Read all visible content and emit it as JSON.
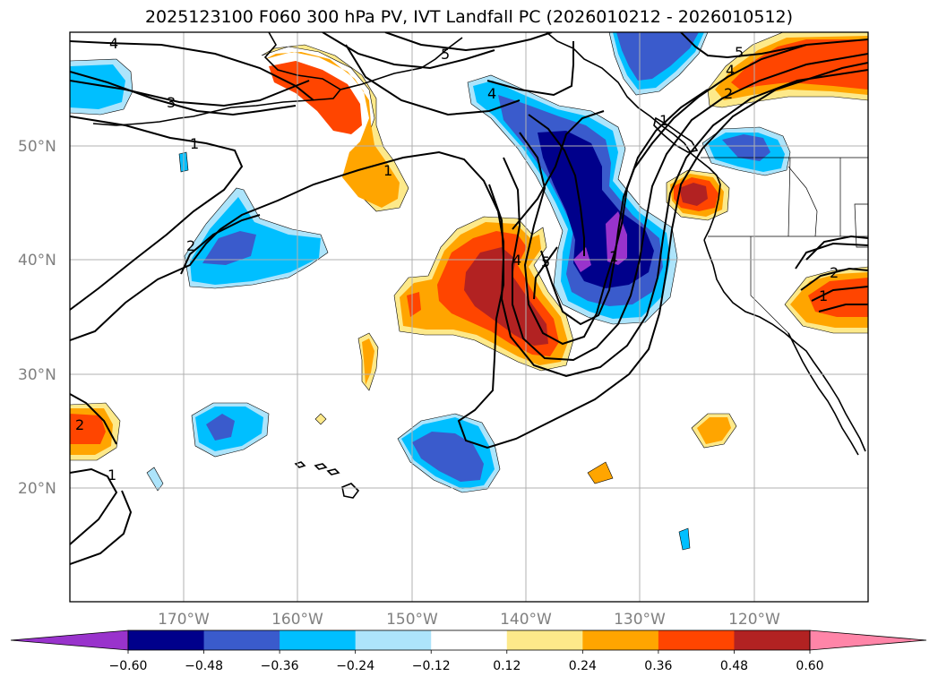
{
  "title": "2025123100 F060 300 hPa PV, IVT Landfall PC (2026010212 - 2026010512)",
  "map": {
    "lat_labels": [
      "50°N",
      "40°N",
      "30°N",
      "20°N"
    ],
    "lon_labels": [
      "170°W",
      "160°W",
      "150°W",
      "140°W",
      "130°W",
      "120°W"
    ],
    "gridlines": true,
    "coastlines": true
  },
  "shading": {
    "colors": {
      "le_-0.60": "#9933cc",
      "-0.60_-0.48": "#00008b",
      "-0.48_-0.36": "#3a5bcc",
      "-0.36_-0.24": "#00bfff",
      "-0.24_-0.12": "#ade4fb",
      "-0.12_0.12": "#ffffff",
      "0.12_0.24": "#fde98a",
      "0.24_0.36": "#ffa500",
      "0.36_0.48": "#ff4500",
      "0.48_0.60": "#b22222",
      "gt_0.60": "#ff85a8"
    }
  },
  "colorbar": {
    "labels": [
      "-0.60",
      "-0.48",
      "-0.36",
      "-0.24",
      "-0.12",
      "0.12",
      "0.24",
      "0.36",
      "0.48",
      "0.60"
    ],
    "colors": [
      "#9933cc",
      "#00008b",
      "#3a5bcc",
      "#00bfff",
      "#ade4fb",
      "#ffffff",
      "#fde98a",
      "#ffa500",
      "#ff4500",
      "#b22222",
      "#ff85a8"
    ]
  },
  "contour_labels": [
    "4",
    "3",
    "1",
    "2",
    "1",
    "5",
    "4",
    "1",
    "4",
    "5",
    "1",
    "2",
    "5",
    "4",
    "2",
    "1",
    "2",
    "1"
  ]
}
